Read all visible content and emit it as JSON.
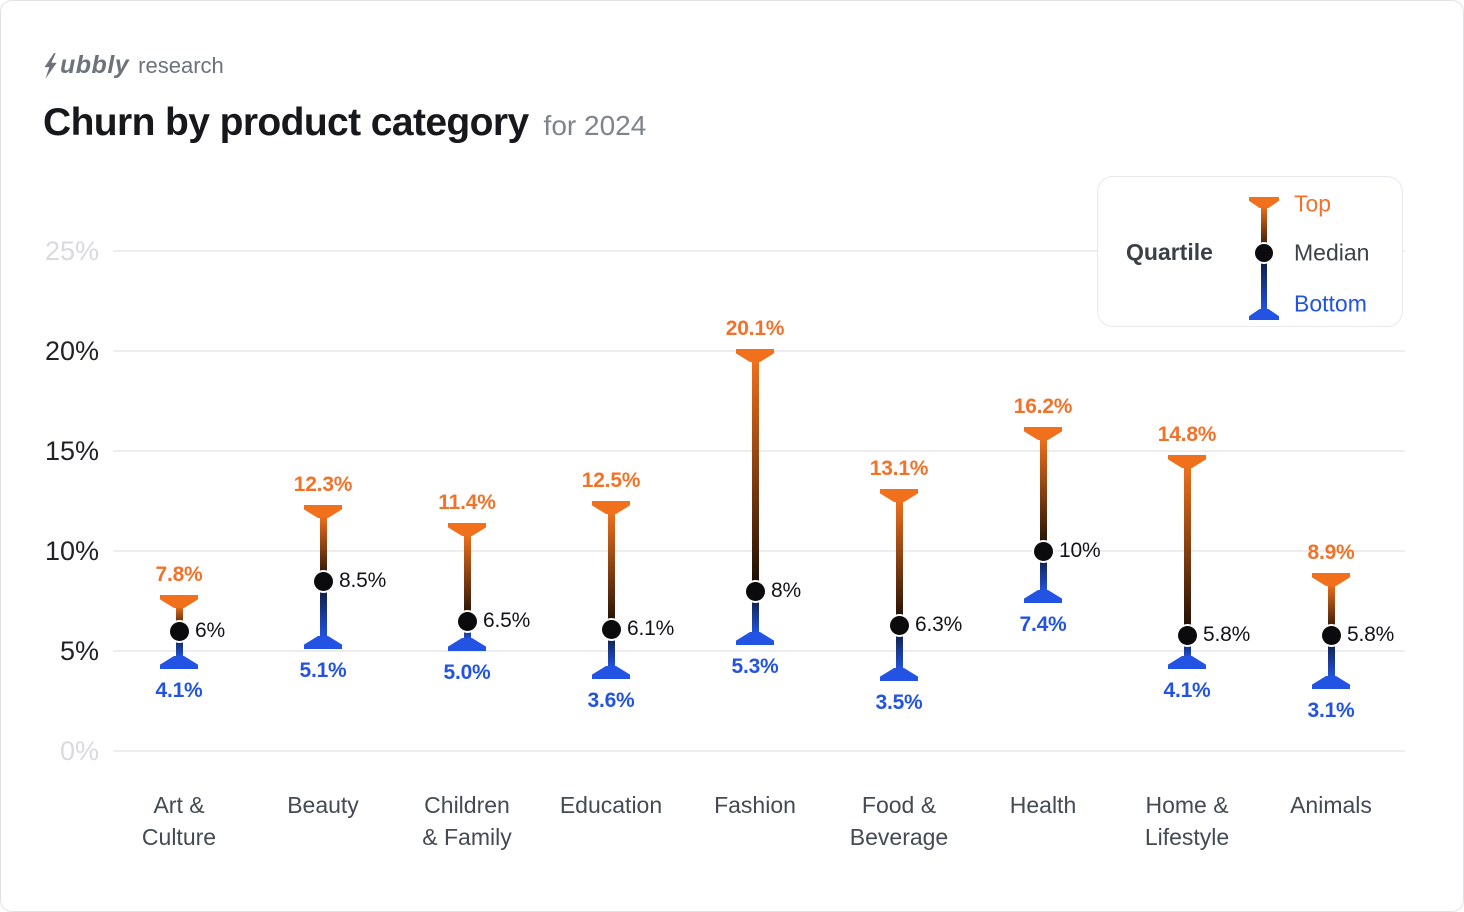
{
  "header": {
    "logo_brand": "Subbly",
    "logo_brand_display_rest": "ubbly",
    "logo_suffix": "research",
    "title": "Churn by product category",
    "subtitle": "for 2024"
  },
  "legend": {
    "title": "Quartile",
    "items": [
      {
        "label": "Top",
        "color": "#f2722a"
      },
      {
        "label": "Median",
        "color": "#3d4248"
      },
      {
        "label": "Bottom",
        "color": "#2353e0"
      }
    ]
  },
  "chart_data": {
    "type": "quartile-range",
    "title": "Churn by product category for 2024",
    "xlabel": "",
    "ylabel": "",
    "ylim": [
      0,
      25
    ],
    "grid": "horizontal",
    "legend_position": "top-right",
    "categories": [
      "Art & Culture",
      "Beauty",
      "Children & Family",
      "Education",
      "Fashion",
      "Food & Beverage",
      "Health",
      "Home & Lifestyle",
      "Animals"
    ],
    "category_display_lines": [
      [
        "Art &",
        "Culture"
      ],
      [
        "Beauty"
      ],
      [
        "Children",
        "& Family"
      ],
      [
        "Education"
      ],
      [
        "Fashion"
      ],
      [
        "Food &",
        "Beverage"
      ],
      [
        "Health"
      ],
      [
        "Home &",
        "Lifestyle"
      ],
      [
        "Animals"
      ]
    ],
    "yticks": [
      {
        "label": "0%",
        "value": 0,
        "muted": true
      },
      {
        "label": "5%",
        "value": 5,
        "muted": false
      },
      {
        "label": "10%",
        "value": 10,
        "muted": false
      },
      {
        "label": "15%",
        "value": 15,
        "muted": false
      },
      {
        "label": "20%",
        "value": 20,
        "muted": false
      },
      {
        "label": "25%",
        "value": 25,
        "muted": true
      }
    ],
    "series": [
      {
        "name": "Top",
        "values": [
          7.8,
          12.3,
          11.4,
          12.5,
          20.1,
          13.1,
          16.2,
          14.8,
          8.9
        ],
        "labels": [
          "7.8%",
          "12.3%",
          "11.4%",
          "12.5%",
          "20.1%",
          "13.1%",
          "16.2%",
          "14.8%",
          "8.9%"
        ]
      },
      {
        "name": "Median",
        "values": [
          6,
          8.5,
          6.5,
          6.1,
          8,
          6.3,
          10,
          5.8,
          5.8
        ],
        "labels": [
          "6%",
          "8.5%",
          "6.5%",
          "6.1%",
          "8%",
          "6.3%",
          "10%",
          "5.8%",
          "5.8%"
        ]
      },
      {
        "name": "Bottom",
        "values": [
          4.1,
          5.1,
          5.0,
          3.6,
          5.3,
          3.5,
          7.4,
          4.1,
          3.1
        ],
        "labels": [
          "4.1%",
          "5.1%",
          "5.0%",
          "3.6%",
          "5.3%",
          "3.5%",
          "7.4%",
          "4.1%",
          "3.1%"
        ]
      }
    ]
  },
  "colors": {
    "top": "#f0701c",
    "top_text": "#f2722a",
    "median_dot": "#0b0b0d",
    "bottom": "#2353e3",
    "bottom_text": "#2353e0",
    "stem_dark": "#170c05",
    "stem_navy": "#0b1424",
    "grid": "#ededf0",
    "tick_dark": "#232327",
    "tick_muted": "#d9d9de",
    "logo": "#6d727b"
  }
}
